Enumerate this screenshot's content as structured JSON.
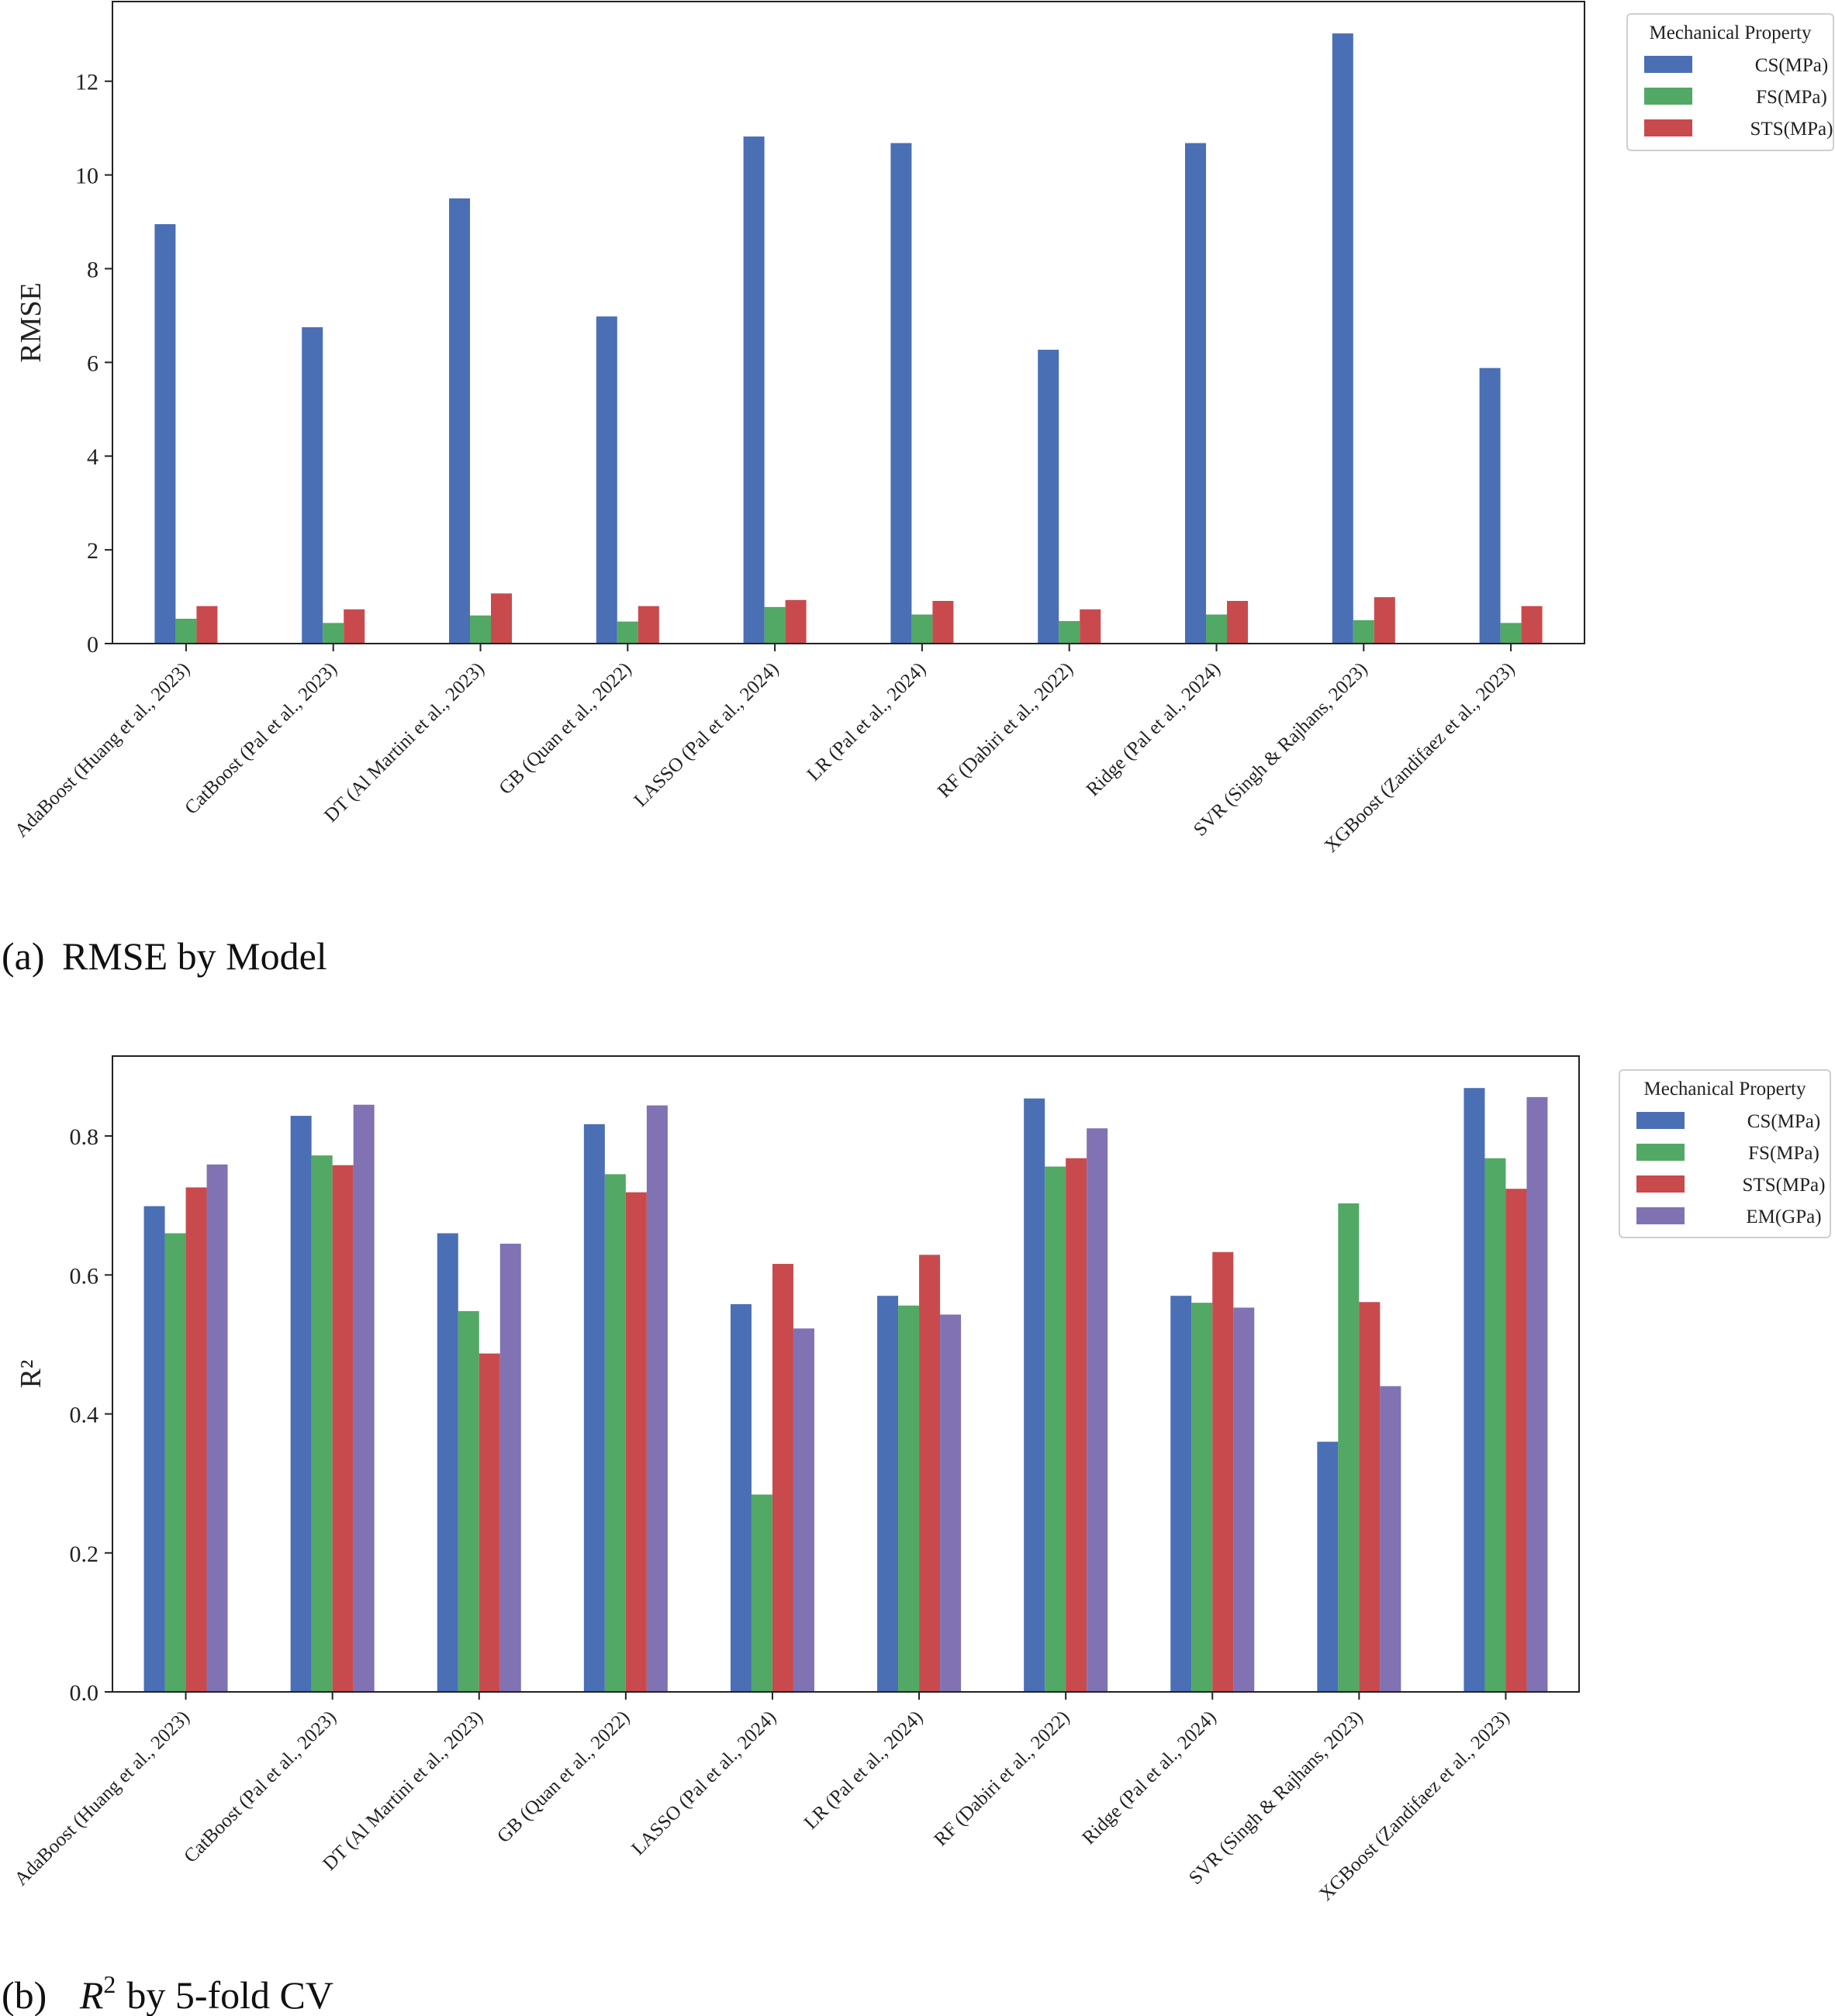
{
  "colors": {
    "CS": "#4a6fb5",
    "FS": "#52a865",
    "STS": "#c94a4d",
    "EM": "#8172b3"
  },
  "chart_data": [
    {
      "type": "bar",
      "caption_prefix": "(a)",
      "caption": "RMSE by Model",
      "ylabel": "RMSE",
      "xlabel": "",
      "ylim": [
        0,
        13.7
      ],
      "yticks": [
        "0",
        "2",
        "4",
        "6",
        "8",
        "10",
        "12"
      ],
      "legend_title": "Mechanical Property",
      "legend_position": "top-right outside",
      "categories": [
        "AdaBoost (Huang et al., 2023)",
        "CatBoost (Pal et al., 2023)",
        "DT (Al Martini et al., 2023)",
        "GB (Quan et al., 2022)",
        "LASSO (Pal et al., 2024)",
        "LR (Pal et al., 2024)",
        "RF (Dabiri et al., 2022)",
        "Ridge (Pal et al., 2024)",
        "SVR (Singh & Rajhans, 2023)",
        "XGBoost (Zandifaez et al., 2023)"
      ],
      "series": [
        {
          "name": "CS(MPa)",
          "key": "CS",
          "values": [
            8.95,
            6.75,
            9.5,
            6.98,
            10.82,
            10.68,
            6.27,
            10.68,
            13.02,
            5.88
          ]
        },
        {
          "name": "FS(MPa)",
          "key": "FS",
          "values": [
            0.53,
            0.44,
            0.6,
            0.47,
            0.78,
            0.62,
            0.48,
            0.62,
            0.5,
            0.44
          ]
        },
        {
          "name": "STS(MPa)",
          "key": "STS",
          "values": [
            0.8,
            0.73,
            1.07,
            0.8,
            0.93,
            0.91,
            0.73,
            0.91,
            0.99,
            0.8
          ]
        }
      ]
    },
    {
      "type": "bar",
      "caption_prefix": "(b)",
      "caption_var": "R",
      "caption_sup": "2",
      "caption": "by 5-fold CV",
      "ylabel": "R²",
      "xlabel": "",
      "ylim": [
        0,
        0.915
      ],
      "yticks": [
        "0.0",
        "0.2",
        "0.4",
        "0.6",
        "0.8"
      ],
      "legend_title": "Mechanical Property",
      "legend_position": "top-right outside",
      "categories": [
        "AdaBoost (Huang et al., 2023)",
        "CatBoost (Pal et al., 2023)",
        "DT (Al Martini et al., 2023)",
        "GB (Quan et al., 2022)",
        "LASSO (Pal et al., 2024)",
        "LR (Pal et al., 2024)",
        "RF (Dabiri et al., 2022)",
        "Ridge (Pal et al., 2024)",
        "SVR (Singh & Rajhans, 2023)",
        "XGBoost (Zandifaez et al., 2023)"
      ],
      "series": [
        {
          "name": "CS(MPa)",
          "key": "CS",
          "values": [
            0.699,
            0.829,
            0.66,
            0.817,
            0.558,
            0.57,
            0.854,
            0.57,
            0.36,
            0.869
          ]
        },
        {
          "name": "FS(MPa)",
          "key": "FS",
          "values": [
            0.66,
            0.772,
            0.548,
            0.745,
            0.284,
            0.556,
            0.756,
            0.56,
            0.703,
            0.768
          ]
        },
        {
          "name": "STS(MPa)",
          "key": "STS",
          "values": [
            0.726,
            0.758,
            0.487,
            0.719,
            0.616,
            0.629,
            0.768,
            0.633,
            0.561,
            0.724
          ]
        },
        {
          "name": "EM(GPa)",
          "key": "EM",
          "values": [
            0.759,
            0.845,
            0.645,
            0.844,
            0.523,
            0.543,
            0.811,
            0.553,
            0.44,
            0.856
          ]
        }
      ]
    }
  ]
}
